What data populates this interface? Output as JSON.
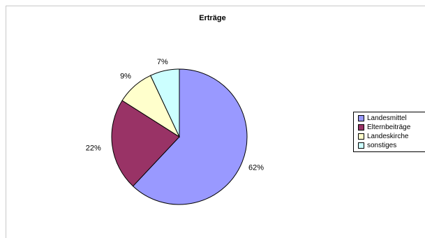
{
  "chart_data": {
    "type": "pie",
    "title": "Erträge",
    "categories": [
      "Landesmittel",
      "Elternbeiträge",
      "Landeskirche",
      "sonstiges"
    ],
    "values": [
      62,
      22,
      9,
      7
    ],
    "labels": [
      "62%",
      "22%",
      "9%",
      "7%"
    ],
    "colors": [
      "#9999ff",
      "#993366",
      "#ffffcc",
      "#ccffff"
    ],
    "legend": "right"
  }
}
